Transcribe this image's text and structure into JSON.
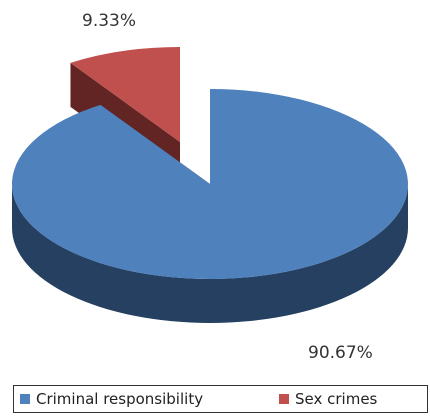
{
  "chart_data": {
    "type": "pie",
    "title": "",
    "three_d": true,
    "categories": [
      "Criminal responsibility",
      "Sex crimes"
    ],
    "values": [
      90.67,
      9.33
    ],
    "value_labels": [
      "90.67%",
      "9.33%"
    ],
    "exploded": [
      "Sex crimes"
    ],
    "colors": {
      "Criminal responsibility": {
        "top": "#4F81BD",
        "side": "#254061"
      },
      "Sex crimes": {
        "top": "#C0504D",
        "side": "#632523"
      }
    },
    "legend_position": "bottom"
  }
}
